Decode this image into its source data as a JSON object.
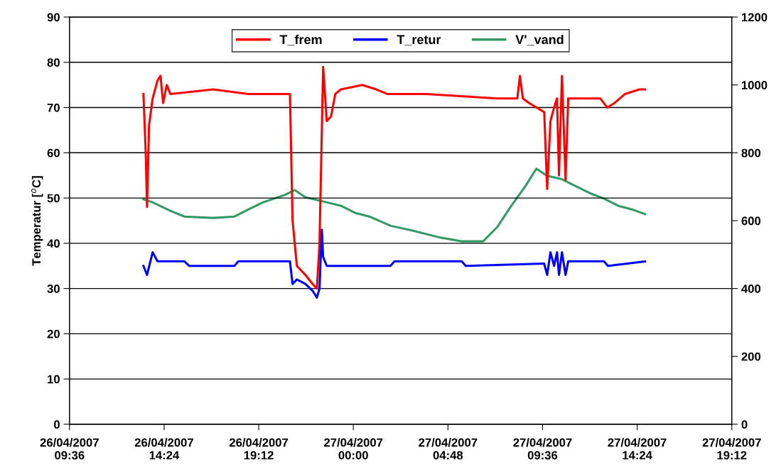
{
  "chart_data": {
    "type": "line",
    "ylabel": "Temperatur [$^{o}$C]",
    "xlim": [
      "2007-04-26T09:36",
      "2007-04-27T19:12"
    ],
    "xticks": [
      {
        "value": "2007-04-26T09:36",
        "label": "26/04/2007\n09:36"
      },
      {
        "value": "2007-04-26T14:24",
        "label": "26/04/2007\n14:24"
      },
      {
        "value": "2007-04-26T19:12",
        "label": "26/04/2007\n19:12"
      },
      {
        "value": "2007-04-27T00:00",
        "label": "27/04/2007\n00:00"
      },
      {
        "value": "2007-04-27T04:48",
        "label": "27/04/2007\n04:48"
      },
      {
        "value": "2007-04-27T09:36",
        "label": "27/04/2007\n09:36"
      },
      {
        "value": "2007-04-27T14:24",
        "label": "27/04/2007\n14:24"
      },
      {
        "value": "2007-04-27T19:12",
        "label": "27/04/2007\n19:12"
      }
    ],
    "ylim": [
      0,
      90
    ],
    "yticks": [
      0,
      10,
      20,
      30,
      40,
      50,
      60,
      70,
      80,
      90
    ],
    "y2lim": [
      0,
      1200
    ],
    "y2ticks": [
      0,
      200,
      400,
      600,
      800,
      1000,
      1200
    ],
    "grid": "y",
    "legend": "top",
    "marker": "none",
    "line_style": "solid",
    "series": [
      {
        "name": "T_frem",
        "color": "#ff0000",
        "x": [
          "2007-04-26T13:21",
          "2007-04-26T13:28",
          "2007-04-26T13:32",
          "2007-04-26T13:38",
          "2007-04-26T13:49",
          "2007-04-26T14:04",
          "2007-04-26T14:13",
          "2007-04-26T14:21",
          "2007-04-26T14:32",
          "2007-04-26T14:43",
          "2007-04-26T16:53",
          "2007-04-26T18:41",
          "2007-04-26T20:40",
          "2007-04-26T20:47",
          "2007-04-26T20:55",
          "2007-04-26T21:08",
          "2007-04-26T21:34",
          "2007-04-26T21:56",
          "2007-04-26T22:09",
          "2007-04-26T22:17",
          "2007-04-26T22:28",
          "2007-04-26T22:39",
          "2007-04-26T22:52",
          "2007-04-26T23:05",
          "2007-04-26T23:22",
          "2007-04-27T00:27",
          "2007-04-27T01:10",
          "2007-04-27T01:43",
          "2007-04-27T03:42",
          "2007-04-27T07:18",
          "2007-04-27T08:19",
          "2007-04-27T08:27",
          "2007-04-27T08:36",
          "2007-04-27T08:55",
          "2007-04-27T09:41",
          "2007-04-27T09:50",
          "2007-04-27T10:00",
          "2007-04-27T10:11",
          "2007-04-27T10:20",
          "2007-04-27T10:26",
          "2007-04-27T10:35",
          "2007-04-27T10:46",
          "2007-04-27T10:54",
          "2007-04-27T11:16",
          "2007-04-27T12:32",
          "2007-04-27T12:53",
          "2007-04-27T13:15",
          "2007-04-27T13:47",
          "2007-04-27T14:31",
          "2007-04-27T14:48"
        ],
        "values": [
          73,
          60,
          48,
          66,
          72,
          76,
          77,
          71,
          75,
          73,
          74,
          73,
          73,
          73,
          45,
          35,
          33,
          31,
          30,
          40,
          79,
          67,
          68,
          73,
          74,
          75,
          74,
          73,
          73,
          72,
          72,
          77,
          72,
          71,
          69,
          52,
          67,
          70,
          72,
          55,
          77,
          54,
          72,
          72,
          72,
          70,
          71,
          73,
          74,
          74
        ]
      },
      {
        "name": "T_retur",
        "color": "#0000ff",
        "x": [
          "2007-04-26T13:21",
          "2007-04-26T13:32",
          "2007-04-26T13:49",
          "2007-04-26T14:04",
          "2007-04-26T15:26",
          "2007-04-26T15:40",
          "2007-04-26T17:58",
          "2007-04-26T18:10",
          "2007-04-26T20:47",
          "2007-04-26T20:55",
          "2007-04-26T21:08",
          "2007-04-26T21:34",
          "2007-04-26T21:56",
          "2007-04-26T22:09",
          "2007-04-26T22:17",
          "2007-04-26T22:24",
          "2007-04-26T22:28",
          "2007-04-26T22:39",
          "2007-04-27T01:53",
          "2007-04-27T02:05",
          "2007-04-27T05:30",
          "2007-04-27T05:42",
          "2007-04-27T09:41",
          "2007-04-27T09:50",
          "2007-04-27T10:00",
          "2007-04-27T10:11",
          "2007-04-27T10:20",
          "2007-04-27T10:26",
          "2007-04-27T10:35",
          "2007-04-27T10:46",
          "2007-04-27T10:54",
          "2007-04-27T12:43",
          "2007-04-27T12:55",
          "2007-04-27T14:48"
        ],
        "values": [
          35,
          33,
          38,
          36,
          36,
          35,
          35,
          36,
          36,
          31,
          32,
          31,
          29.5,
          28,
          30,
          43,
          37,
          35,
          35,
          36,
          36,
          35,
          35.5,
          33,
          38,
          35,
          38,
          33,
          38,
          33,
          36,
          36,
          35,
          36
        ]
      },
      {
        "name": "V'_vand",
        "color": "#339966",
        "axis": "y2",
        "x": [
          "2007-04-26T13:21",
          "2007-04-26T13:49",
          "2007-04-26T14:43",
          "2007-04-26T15:26",
          "2007-04-26T16:53",
          "2007-04-26T17:58",
          "2007-04-26T18:41",
          "2007-04-26T19:25",
          "2007-04-26T20:29",
          "2007-04-26T21:02",
          "2007-04-26T21:34",
          "2007-04-26T22:39",
          "2007-04-26T23:22",
          "2007-04-27T00:05",
          "2007-04-27T00:49",
          "2007-04-27T01:53",
          "2007-04-27T02:58",
          "2007-04-27T04:25",
          "2007-04-27T05:30",
          "2007-04-27T06:35",
          "2007-04-27T07:18",
          "2007-04-27T08:01",
          "2007-04-27T08:44",
          "2007-04-27T09:17",
          "2007-04-27T09:50",
          "2007-04-27T10:33",
          "2007-04-27T11:16",
          "2007-04-27T12:00",
          "2007-04-27T12:43",
          "2007-04-27T13:26",
          "2007-04-27T14:09",
          "2007-04-27T14:48"
        ],
        "values": [
          663,
          654,
          629,
          612,
          608,
          612,
          633,
          654,
          675,
          690,
          669,
          654,
          644,
          623,
          612,
          585,
          571,
          550,
          539,
          539,
          581,
          644,
          702,
          753,
          732,
          723,
          702,
          681,
          665,
          644,
          633,
          619
        ]
      }
    ]
  }
}
